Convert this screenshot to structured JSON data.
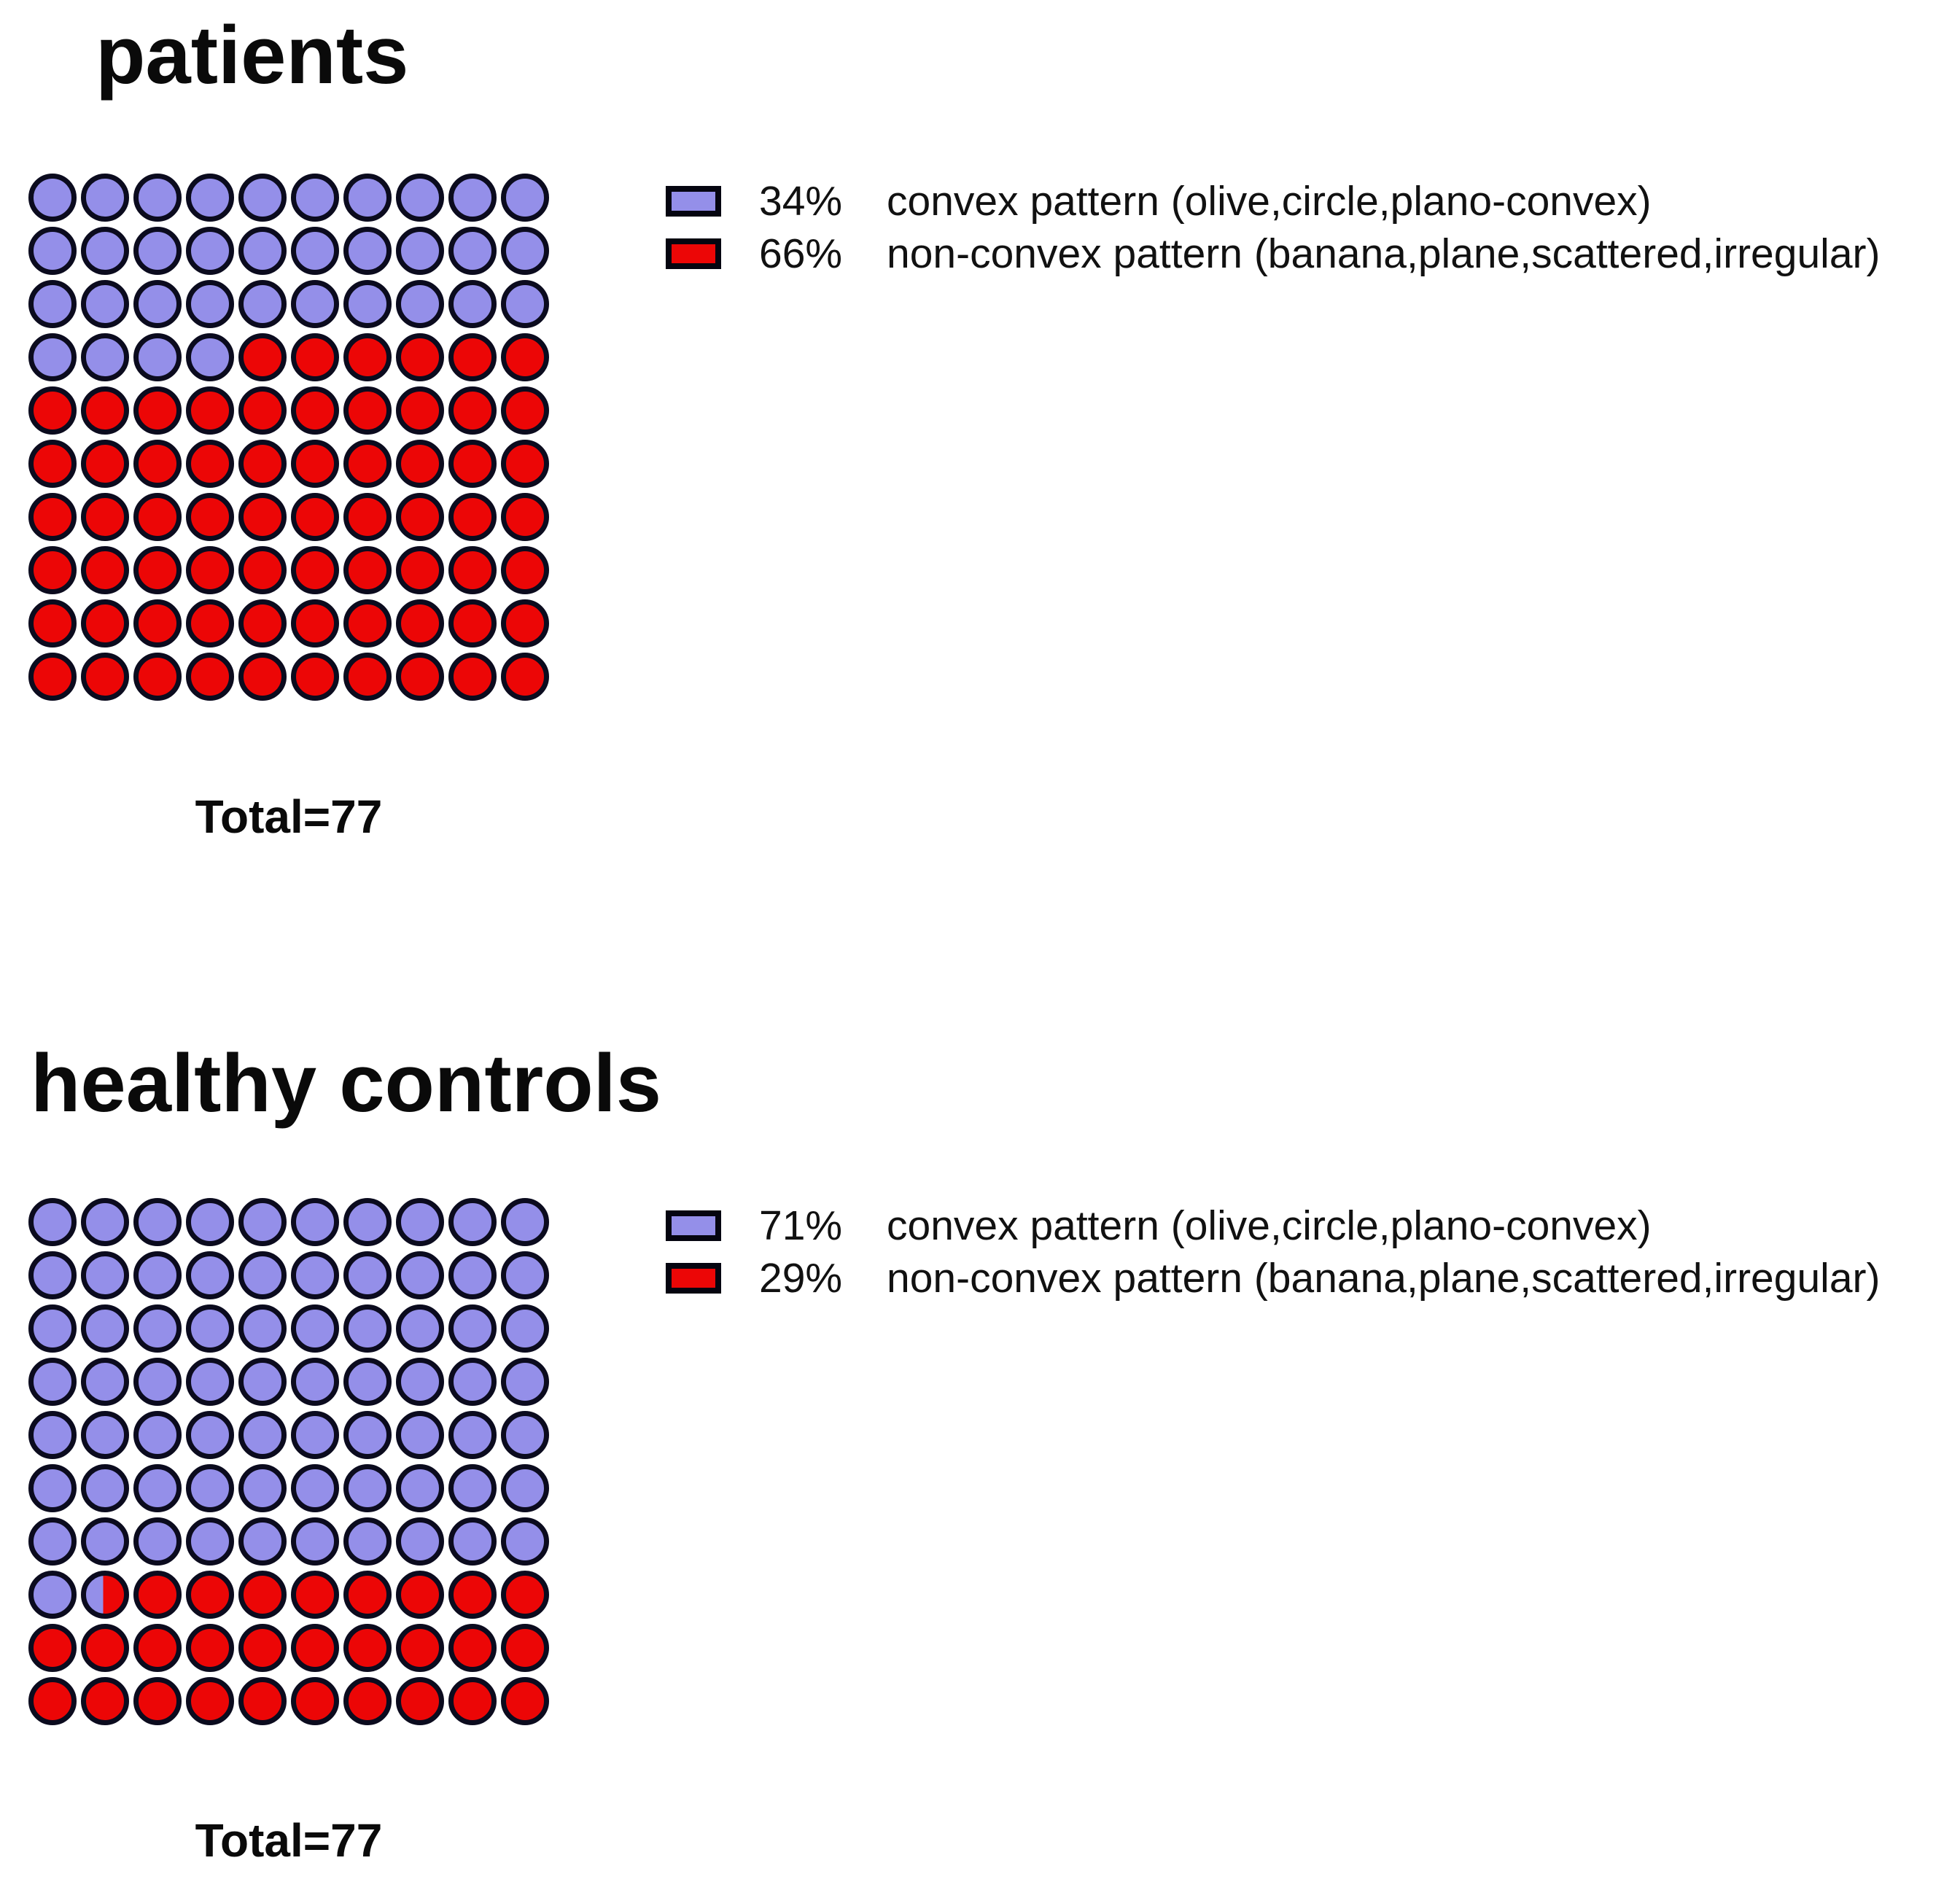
{
  "chart_data": [
    {
      "type": "waffle",
      "title": "patients",
      "total": 77,
      "total_label": "Total=77",
      "waffle": {
        "rows": 10,
        "cols": 10,
        "convex_cells": 34,
        "fill_order": "row-major from top-left: convex (blue) first, then non-convex (red)"
      },
      "values_percent": [
        34,
        66
      ],
      "colors": [
        "#948FE9",
        "#EC0606"
      ],
      "outline_color": "#0B0B1E",
      "legend_position": "right",
      "legend": [
        {
          "value": "34%",
          "label": "convex pattern (olive,circle,plano-convex)",
          "color": "#948FE9"
        },
        {
          "value": "66%",
          "label": "non-convex pattern (banana,plane,scattered,irregular)",
          "color": "#EC0606"
        }
      ]
    },
    {
      "type": "waffle",
      "title": "healthy controls",
      "total": 77,
      "total_label": "Total=77",
      "waffle": {
        "rows": 10,
        "cols": 10,
        "convex_cells": 71.45,
        "fill_order": "row-major from top-left: convex (blue) first, split cell 72 is part blue / part red, then non-convex (red)"
      },
      "values_percent": [
        71,
        29
      ],
      "colors": [
        "#948FE9",
        "#EC0606"
      ],
      "outline_color": "#0B0B1E",
      "legend_position": "right",
      "legend": [
        {
          "value": "71%",
          "label": "convex pattern (olive,circle,plano-convex)",
          "color": "#948FE9"
        },
        {
          "value": "29%",
          "label": "non-convex pattern (banana,plane,scattered,irregular)",
          "color": "#EC0606"
        }
      ]
    }
  ]
}
